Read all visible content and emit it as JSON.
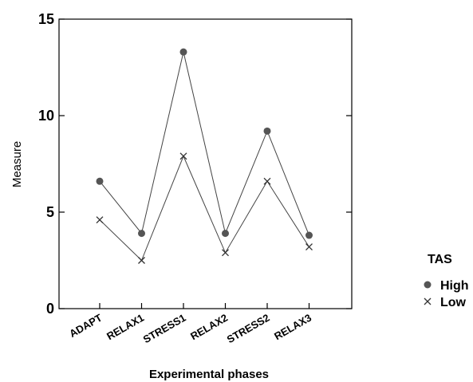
{
  "chart_data": {
    "type": "line",
    "title": "",
    "xlabel": "Experimental phases",
    "ylabel": "Measure",
    "categories": [
      "ADAPT",
      "RELAX1",
      "STRESS1",
      "RELAX2",
      "STRESS2",
      "RELAX3"
    ],
    "ylim": [
      0,
      15
    ],
    "yticks": [
      "0",
      "5",
      "10",
      "15"
    ],
    "grid": false,
    "legend_placement": "right",
    "legend_title": "TAS",
    "series": [
      {
        "name": "High",
        "marker": "circle",
        "color": "#555555",
        "values": [
          6.6,
          3.9,
          13.3,
          3.9,
          9.2,
          3.8
        ]
      },
      {
        "name": "Low",
        "marker": "x",
        "color": "#555555",
        "values": [
          4.6,
          2.5,
          7.9,
          2.9,
          6.6,
          3.2
        ]
      }
    ]
  }
}
